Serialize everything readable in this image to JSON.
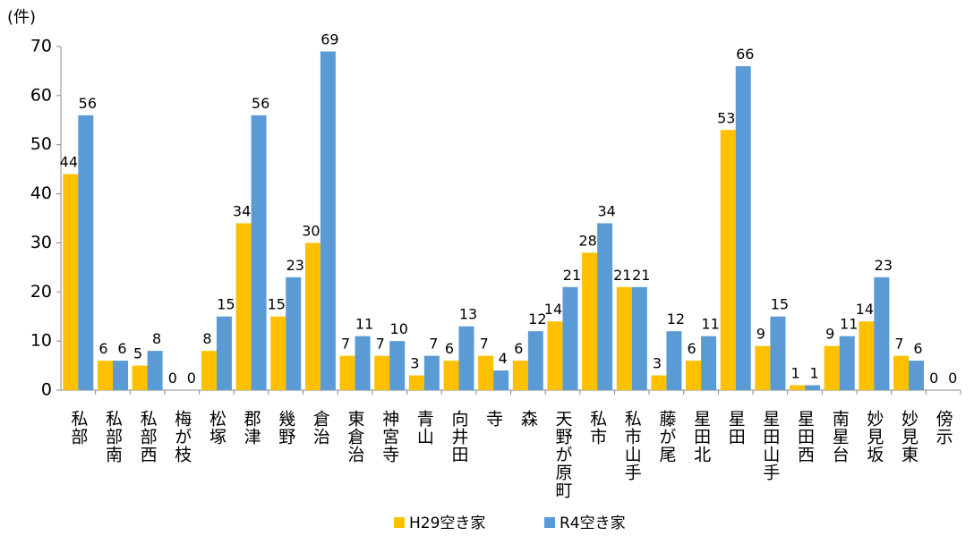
{
  "chart_data": {
    "type": "bar",
    "y_label": "(件)",
    "categories": [
      "私部",
      "私部南",
      "私部西",
      "梅が枝",
      "松塚",
      "郡津",
      "幾野",
      "倉治",
      "東倉治",
      "神宮寺",
      "青山",
      "向井田",
      "寺",
      "森",
      "天野が原町",
      "私市",
      "私市山手",
      "藤が尾",
      "星田北",
      "星田",
      "星田山手",
      "星田西",
      "南星台",
      "妙見坂",
      "妙見東",
      "傍示"
    ],
    "series": [
      {
        "name": "H29空き家",
        "color": "#FFC000",
        "values": [
          44,
          6,
          5,
          0,
          8,
          34,
          15,
          30,
          7,
          7,
          3,
          6,
          7,
          6,
          14,
          28,
          21,
          3,
          6,
          53,
          9,
          1,
          9,
          14,
          7,
          0
        ]
      },
      {
        "name": "R4空き家",
        "color": "#5B9BD5",
        "values": [
          56,
          6,
          8,
          0,
          15,
          56,
          23,
          69,
          11,
          10,
          7,
          13,
          4,
          12,
          21,
          34,
          21,
          12,
          11,
          66,
          15,
          1,
          11,
          23,
          6,
          0
        ]
      }
    ],
    "ylim": [
      0,
      70
    ],
    "yticks": [
      0,
      10,
      20,
      30,
      40,
      50,
      60,
      70
    ],
    "legend": "bottom"
  }
}
